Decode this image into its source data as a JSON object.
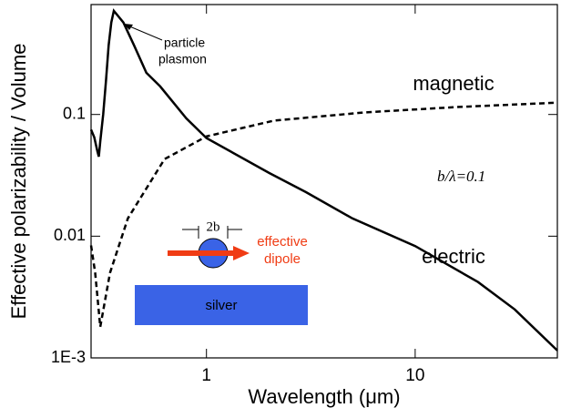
{
  "chart_data": {
    "type": "line",
    "xlabel": "Wavelength (μm)",
    "ylabel": "Effective polarizability / Volume",
    "log_x": true,
    "log_y": true,
    "xlim": [
      0.28,
      48
    ],
    "ylim": [
      0.001,
      0.8
    ],
    "xticks": [
      1,
      10
    ],
    "yticks": [
      {
        "value": 0.001,
        "label": "1E-3"
      },
      0.01,
      0.1
    ],
    "series": [
      {
        "name": "electric",
        "color": "#000000",
        "dash": false,
        "x": [
          0.28,
          0.29,
          0.3,
          0.305,
          0.31,
          0.32,
          0.33,
          0.34,
          0.35,
          0.36,
          0.4,
          0.45,
          0.515,
          0.6,
          0.8,
          1,
          2,
          3,
          5,
          10,
          20,
          30,
          48
        ],
        "values": [
          0.075,
          0.065,
          0.05,
          0.045,
          0.06,
          0.1,
          0.19,
          0.37,
          0.57,
          0.71,
          0.57,
          0.37,
          0.22,
          0.17,
          0.093,
          0.064,
          0.033,
          0.023,
          0.014,
          0.0083,
          0.0042,
          0.0025,
          0.00115
        ]
      },
      {
        "name": "magnetic",
        "color": "#000000",
        "dash": true,
        "x": [
          0.28,
          0.293,
          0.31,
          0.345,
          0.42,
          0.63,
          1,
          2.1,
          5.75,
          15.7,
          48
        ],
        "values": [
          0.0084,
          0.005,
          0.0018,
          0.005,
          0.014,
          0.043,
          0.066,
          0.089,
          0.104,
          0.115,
          0.125
        ]
      }
    ],
    "annotations": {
      "plasmon": [
        "particle",
        "plasmon"
      ],
      "ratio": "b/λ=0.1",
      "size": "2b",
      "dipole": [
        "effective",
        "dipole"
      ],
      "substrate": "silver"
    }
  }
}
